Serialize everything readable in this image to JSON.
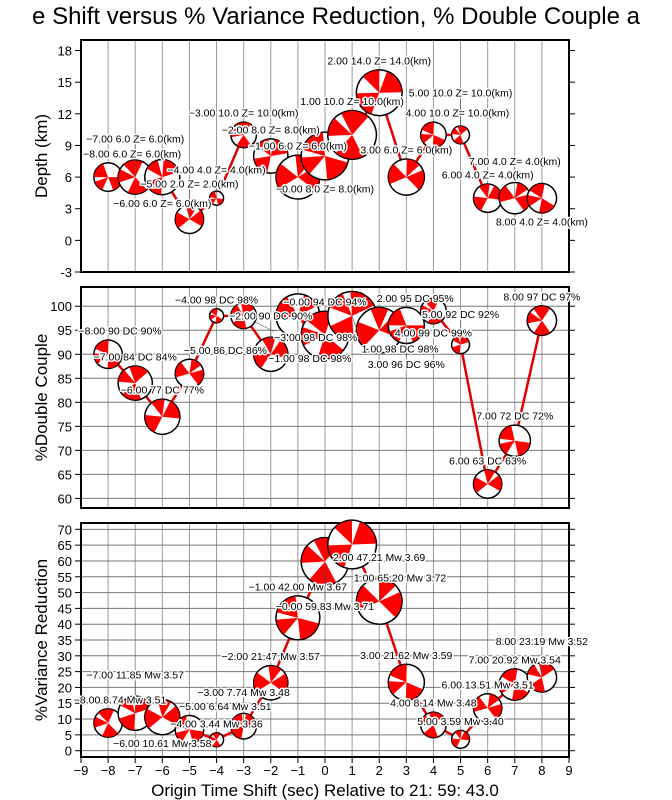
{
  "title": "e Shift versus % Variance Reduction, % Double Couple a",
  "colors": {
    "line": "#e00000",
    "fill": "#ff0000",
    "grid": "#999999"
  },
  "chart_data": [
    {
      "type": "line",
      "ylabel": "Depth (km)",
      "xlim": [
        -9,
        9
      ],
      "ylim": [
        -3,
        19
      ],
      "yticks": [
        -3,
        0,
        3,
        6,
        9,
        12,
        15,
        18
      ],
      "grid": "vertical",
      "x": [
        -8,
        -7,
        -6,
        -5,
        -4,
        -3,
        -2,
        -1,
        0,
        1,
        2,
        3,
        4,
        5,
        6,
        7,
        8
      ],
      "values": [
        6,
        6,
        6,
        2,
        4,
        10,
        8,
        6,
        8,
        10,
        14,
        6,
        10,
        10,
        4,
        4,
        4
      ],
      "labels": [
        "-8.00 6.0 Z= 6.0(km)",
        "-7.00 6.0 Z= 6.0(km)",
        "-6.00 6.0 Z= 6.0(km)",
        "-5.00 2.0 Z= 2.0(km)",
        "-4.00 4.0 Z= 4.0(km)",
        "-3.00 10.0 Z= 10.0(km)",
        "-2.00 8.0 Z= 8.0(km)",
        "-1.00 6.0 Z= 6.0(km)",
        "-0.00 8.0 Z= 8.0(km)",
        "1.00 10.0 Z= 10.0(km)",
        "2.00 14.0 Z= 14.0(km)",
        "3.00 6.0 Z= 6.0(km)",
        "4.00 10.0 Z= 10.0(km)",
        "5.00 10.0 Z= 10.0(km)",
        "6.00 4.0 Z= 4.0(km)",
        "7.00 4.0 Z= 4.0(km)",
        "8.00 4.0 Z= 4.0(km)"
      ]
    },
    {
      "type": "line",
      "ylabel": "%Double Couple",
      "xlim": [
        -9,
        9
      ],
      "ylim": [
        58,
        104
      ],
      "yticks": [
        60,
        65,
        70,
        75,
        80,
        85,
        90,
        95,
        100
      ],
      "grid": "both",
      "x": [
        -8,
        -7,
        -6,
        -5,
        -4,
        -3,
        -2,
        -1,
        0,
        1,
        2,
        3,
        4,
        5,
        6,
        7,
        8
      ],
      "values": [
        90,
        84,
        77,
        86,
        98,
        98,
        90,
        98,
        94,
        98,
        95,
        96,
        99,
        92,
        63,
        72,
        97
      ],
      "labels": [
        "-8.00 90 DC 90%",
        "-7.00 84 DC 84%",
        "-6.00 77 DC 77%",
        "-5.00 86 DC 86%",
        "-4.00 98 DC 98%",
        "-3.00 98 DC 98%",
        "-2.00 90 DC 90%",
        "-1.00 98 DC 98%",
        "-0.00 94 DC 94%",
        "1.00 98 DC 98%",
        "2.00 95 DC 95%",
        "3.00 96 DC 96%",
        "4.00 99 DC 99%",
        "5.00 92 DC 92%",
        "6.00 63 DC 63%",
        "7.00 72 DC 72%",
        "8.00 97 DC 97%"
      ]
    },
    {
      "type": "line",
      "ylabel": "%Variance Reduction",
      "xlabel": "Origin Time Shift (sec) Relative to 21: 59: 43.0",
      "xlim": [
        -9,
        9
      ],
      "ylim": [
        -2,
        72
      ],
      "xticks": [
        -9,
        -8,
        -7,
        -6,
        -5,
        -4,
        -3,
        -2,
        -1,
        0,
        1,
        2,
        3,
        4,
        5,
        6,
        7,
        8,
        9
      ],
      "yticks": [
        0,
        5,
        10,
        15,
        20,
        25,
        30,
        35,
        40,
        45,
        50,
        55,
        60,
        65,
        70
      ],
      "grid": "both",
      "x": [
        -8,
        -7,
        -6,
        -5,
        -4,
        -3,
        -2,
        -1,
        0,
        1,
        2,
        3,
        4,
        5,
        6,
        7,
        8
      ],
      "values": [
        8.74,
        11.85,
        10.61,
        6.64,
        3.44,
        7.74,
        21.47,
        42.0,
        59.83,
        65.2,
        47.21,
        21.62,
        8.14,
        3.59,
        13.51,
        20.92,
        23.19
      ],
      "mw": [
        3.51,
        3.57,
        3.58,
        3.51,
        3.36,
        3.48,
        3.57,
        3.67,
        3.71,
        3.72,
        3.69,
        3.59,
        3.48,
        3.4,
        3.51,
        3.54,
        3.52
      ],
      "labels": [
        "-8.00 8.74 Mw 3.51",
        "-7.00 11.85 Mw 3.57",
        "-6.00 10.61 Mw 3.58",
        "-5.00 6.64 Mw 3.51",
        "-4.00 3.44 Mw 3.36",
        "-3.00 7.74 Mw 3.48",
        "-2.00 21.47 Mw 3.57",
        "-1.00 42.00 Mw 3.67",
        "-0.00 59.83 Mw 3.71",
        "1.00 65.20 Mw 3.72",
        "2.00 47.21 Mw 3.69",
        "3.00 21.62 Mw 3.59",
        "4.00 8.14 Mw 3.48",
        "5.00 3.59 Mw 3.40",
        "6.00 13.51 Mw 3.51",
        "7.00 20.92 Mw 3.54",
        "8.00 23.19 Mw 3.52"
      ]
    }
  ]
}
